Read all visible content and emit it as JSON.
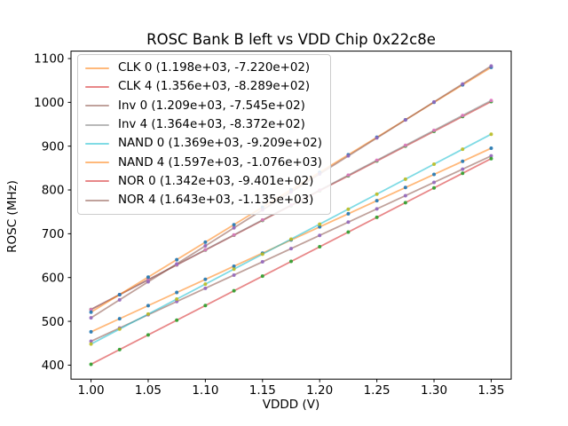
{
  "chart_data": {
    "type": "scatter",
    "title": "ROSC Bank B left vs VDD Chip 0x22c8e",
    "xlabel": "VDDD (V)",
    "ylabel": "ROSC (MHz)",
    "xlim": [
      0.9825,
      1.3675
    ],
    "ylim": [
      368.0,
      1117.0
    ],
    "xticks": [
      1.0,
      1.05,
      1.1,
      1.15,
      1.2,
      1.25,
      1.3,
      1.35
    ],
    "xtick_labels": [
      "1.00",
      "1.05",
      "1.10",
      "1.15",
      "1.20",
      "1.25",
      "1.30",
      "1.35"
    ],
    "yticks": [
      400,
      500,
      600,
      700,
      800,
      900,
      1000,
      1100
    ],
    "ytick_labels": [
      "400",
      "500",
      "600",
      "700",
      "800",
      "900",
      "1000",
      "1100"
    ],
    "grid": false,
    "legend_position": "upper left",
    "line_alpha": 0.55,
    "marker_alpha": 0.9,
    "x": [
      1.0,
      1.025,
      1.05,
      1.075,
      1.1,
      1.125,
      1.15,
      1.175,
      1.2,
      1.225,
      1.25,
      1.275,
      1.3,
      1.325,
      1.35
    ],
    "series": [
      {
        "name": "CLK 0",
        "legend_label": "CLK 0 (1.198e+03, -7.220e+02)",
        "fit": {
          "slope": 1198.0,
          "intercept": -722.0
        },
        "line_color": "#ff7f0e",
        "scatter_color": "#1f77b4",
        "y": [
          476.0,
          506.0,
          535.9,
          565.9,
          595.8,
          625.8,
          655.7,
          685.7,
          715.6,
          745.6,
          775.5,
          805.5,
          835.4,
          865.4,
          895.3
        ]
      },
      {
        "name": "CLK 4",
        "legend_label": "CLK 4 (1.356e+03, -8.289e+02)",
        "fit": {
          "slope": 1356.0,
          "intercept": -828.9
        },
        "line_color": "#d62728",
        "scatter_color": "#2ca02c",
        "y": [
          527.1,
          561.0,
          594.9,
          628.8,
          662.7,
          696.6,
          730.5,
          764.4,
          798.3,
          832.2,
          866.1,
          900.0,
          933.9,
          967.8,
          1001.7
        ]
      },
      {
        "name": "Inv 0",
        "legend_label": "Inv 0 (1.209e+03, -7.545e+02)",
        "fit": {
          "slope": 1209.0,
          "intercept": -754.5
        },
        "line_color": "#8c564b",
        "scatter_color": "#9467bd",
        "y": [
          454.5,
          484.7,
          515.0,
          545.2,
          575.4,
          605.6,
          635.9,
          666.1,
          696.3,
          726.5,
          756.8,
          787.0,
          817.2,
          847.4,
          877.7
        ]
      },
      {
        "name": "Inv 4",
        "legend_label": "Inv 4 (1.364e+03, -8.372e+02)",
        "fit": {
          "slope": 1364.0,
          "intercept": -837.2
        },
        "line_color": "#7f7f7f",
        "scatter_color": "#e377c2",
        "y": [
          526.8,
          560.9,
          595.0,
          629.1,
          663.2,
          697.3,
          731.4,
          765.5,
          799.6,
          833.7,
          867.8,
          901.9,
          936.0,
          970.1,
          1004.2
        ]
      },
      {
        "name": "NAND 0",
        "legend_label": "NAND 0 (1.369e+03, -9.209e+02)",
        "fit": {
          "slope": 1369.0,
          "intercept": -920.9
        },
        "line_color": "#17becf",
        "scatter_color": "#bcbd22",
        "y": [
          448.1,
          482.3,
          516.6,
          550.8,
          585.0,
          619.2,
          653.5,
          687.7,
          721.9,
          756.1,
          790.4,
          824.6,
          858.8,
          893.0,
          927.3
        ]
      },
      {
        "name": "NAND 4",
        "legend_label": "NAND 4 (1.597e+03, -1.076e+03)",
        "fit": {
          "slope": 1597.0,
          "intercept": -1076.0
        },
        "line_color": "#ff7f0e",
        "scatter_color": "#1f77b4",
        "y": [
          521.0,
          560.9,
          600.9,
          640.8,
          680.7,
          720.6,
          760.6,
          800.5,
          840.4,
          880.3,
          920.3,
          960.2,
          1000.1,
          1040.0,
          1080.0
        ]
      },
      {
        "name": "NOR 0",
        "legend_label": "NOR 0 (1.342e+03, -9.401e+02)",
        "fit": {
          "slope": 1342.0,
          "intercept": -940.1
        },
        "line_color": "#d62728",
        "scatter_color": "#2ca02c",
        "y": [
          401.9,
          435.5,
          469.0,
          502.6,
          536.1,
          569.7,
          603.2,
          636.8,
          670.3,
          703.9,
          737.4,
          771.0,
          804.5,
          838.1,
          871.6
        ]
      },
      {
        "name": "NOR 4",
        "legend_label": "NOR 4 (1.643e+03, -1.135e+03)",
        "fit": {
          "slope": 1643.0,
          "intercept": -1135.0
        },
        "line_color": "#8c564b",
        "scatter_color": "#9467bd",
        "y": [
          508.0,
          549.1,
          590.2,
          631.2,
          672.3,
          713.4,
          754.5,
          795.5,
          836.6,
          877.7,
          918.8,
          959.8,
          1000.9,
          1042.0,
          1083.1
        ]
      }
    ]
  }
}
